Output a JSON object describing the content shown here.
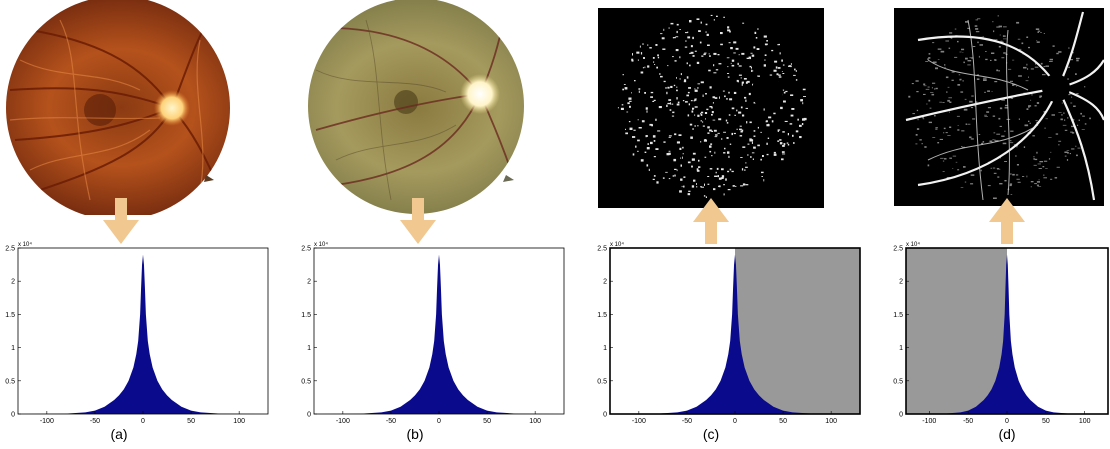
{
  "panels": [
    {
      "caption": "(a)",
      "image": "fundus-photo-orange",
      "arrow": "down"
    },
    {
      "caption": "(b)",
      "image": "fundus-photo-green",
      "arrow": "down"
    },
    {
      "caption": "(c)",
      "image": "filter-response-map",
      "arrow": "up",
      "shaded": "right-of-zero"
    },
    {
      "caption": "(d)",
      "image": "vessel-enhanced-map",
      "arrow": "up",
      "shaded": "left-of-zero"
    }
  ],
  "colors": {
    "histogram": "#0a0a8c",
    "arrow": "#f0c890",
    "shade": "#999999"
  },
  "chart_data": {
    "type": "area",
    "x_ticks": [
      "-100",
      "-50",
      "0",
      "50",
      "100"
    ],
    "y_ticks": [
      "0",
      "0.5",
      "1",
      "1.5",
      "2",
      "2.5"
    ],
    "y_multiplier": "x 10⁴",
    "xlim": [
      -130,
      130
    ],
    "ylim": [
      0,
      25000
    ],
    "x": [
      -130,
      -80,
      -60,
      -50,
      -40,
      -30,
      -25,
      -20,
      -15,
      -10,
      -7,
      -5,
      -3,
      -2,
      -1,
      0,
      1,
      2,
      3,
      5,
      7,
      10,
      15,
      20,
      25,
      30,
      40,
      50,
      60,
      80,
      130
    ],
    "y": [
      0,
      60,
      250,
      500,
      1100,
      2100,
      2800,
      3700,
      5000,
      7000,
      9000,
      11000,
      15000,
      19000,
      22500,
      24000,
      22500,
      19000,
      15000,
      11000,
      9000,
      7000,
      5000,
      3700,
      2800,
      2100,
      1100,
      500,
      250,
      60,
      0
    ]
  }
}
